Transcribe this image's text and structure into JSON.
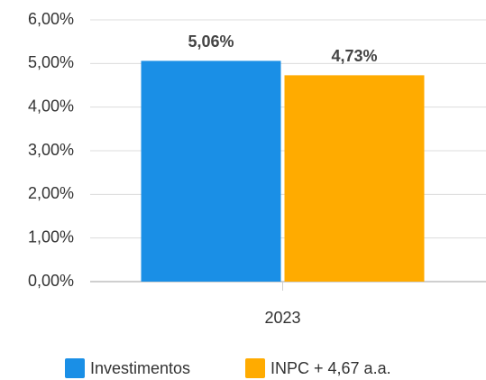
{
  "chart_data": {
    "type": "bar",
    "categories": [
      "2023"
    ],
    "series": [
      {
        "name": "Investimentos",
        "color": "#1a8fe6",
        "values": [
          5.06
        ],
        "value_labels": [
          "5,06%"
        ]
      },
      {
        "name": "INPC + 4,67 a.a.",
        "color": "#ffab00",
        "values": [
          4.73
        ],
        "value_labels": [
          "4,73%"
        ]
      }
    ],
    "ylim": [
      0,
      6
    ],
    "yticks": [
      {
        "value": 0,
        "label": "0,00%"
      },
      {
        "value": 1,
        "label": "1,00%"
      },
      {
        "value": 2,
        "label": "2,00%"
      },
      {
        "value": 3,
        "label": "3,00%"
      },
      {
        "value": 4,
        "label": "4,00%"
      },
      {
        "value": 5,
        "label": "5,00%"
      },
      {
        "value": 6,
        "label": "6,00%"
      }
    ],
    "grid": true,
    "legend": "bottom"
  }
}
